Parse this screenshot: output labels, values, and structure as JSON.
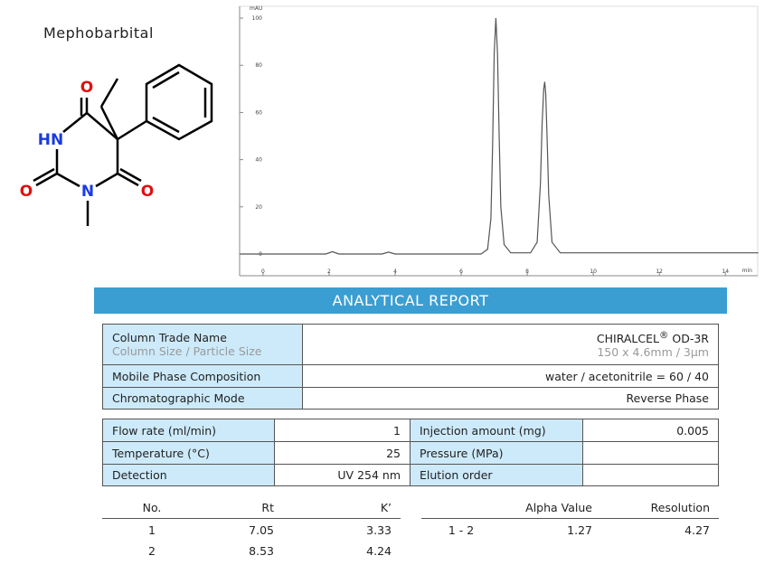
{
  "compound": "Mephobarbital",
  "structure": {
    "atoms": [
      "O",
      "HN",
      "O",
      "N",
      "O"
    ]
  },
  "chart_data": {
    "type": "line",
    "y_label": "mAU",
    "x_label": "min",
    "x": [
      -0.7,
      0,
      1.9,
      2.1,
      2.3,
      3.6,
      3.8,
      4.0,
      6.6,
      6.8,
      6.9,
      6.95,
      7.0,
      7.05,
      7.1,
      7.15,
      7.2,
      7.3,
      7.5,
      8.1,
      8.3,
      8.4,
      8.45,
      8.5,
      8.53,
      8.56,
      8.6,
      8.65,
      8.75,
      9.0,
      15
    ],
    "values": [
      0,
      0,
      0,
      1,
      0,
      0,
      0.8,
      0,
      0,
      2,
      15,
      45,
      85,
      100,
      85,
      50,
      20,
      4,
      0.5,
      0.5,
      5,
      30,
      55,
      70,
      73,
      68,
      50,
      25,
      5,
      0.5,
      0.5
    ],
    "color": "#555555",
    "xlim": [
      -0.71,
      14.98
    ],
    "ylim": [
      -9.2,
      105
    ],
    "xticks": [
      0,
      2,
      4,
      6,
      8,
      10,
      12,
      14
    ],
    "yticks": [
      0,
      20,
      40,
      60,
      80,
      100
    ]
  },
  "report": {
    "title": "ANALYTICAL REPORT",
    "column": {
      "label": "Column Trade Name",
      "sublabel": "Column Size / Particle Size",
      "name": "CHIRALCEL",
      "mark": "®",
      "model": "OD-3R",
      "size": "150 x 4.6mm / 3µm"
    },
    "mobile_phase": {
      "label": "Mobile Phase Composition",
      "value": "water / acetonitrile = 60 / 40"
    },
    "mode": {
      "label": "Chromatographic Mode",
      "value": "Reverse Phase"
    },
    "conditions": [
      [
        "Flow rate (ml/min)",
        1,
        "Injection amount (mg)",
        0.005
      ],
      [
        "Temperature (°C)",
        25,
        "Pressure (MPa)",
        null
      ],
      [
        "Detection",
        "UV 254 nm",
        "Elution order",
        null
      ]
    ],
    "peaks": {
      "headers": [
        "No.",
        "Rt",
        "K’"
      ],
      "rows": [
        [
          1,
          7.05,
          3.33
        ],
        [
          2,
          8.53,
          4.24
        ]
      ]
    },
    "separation": {
      "headers": [
        "Alpha Value",
        "Resolution"
      ],
      "rows": [
        [
          "1 - 2",
          1.27,
          4.27
        ]
      ]
    }
  }
}
